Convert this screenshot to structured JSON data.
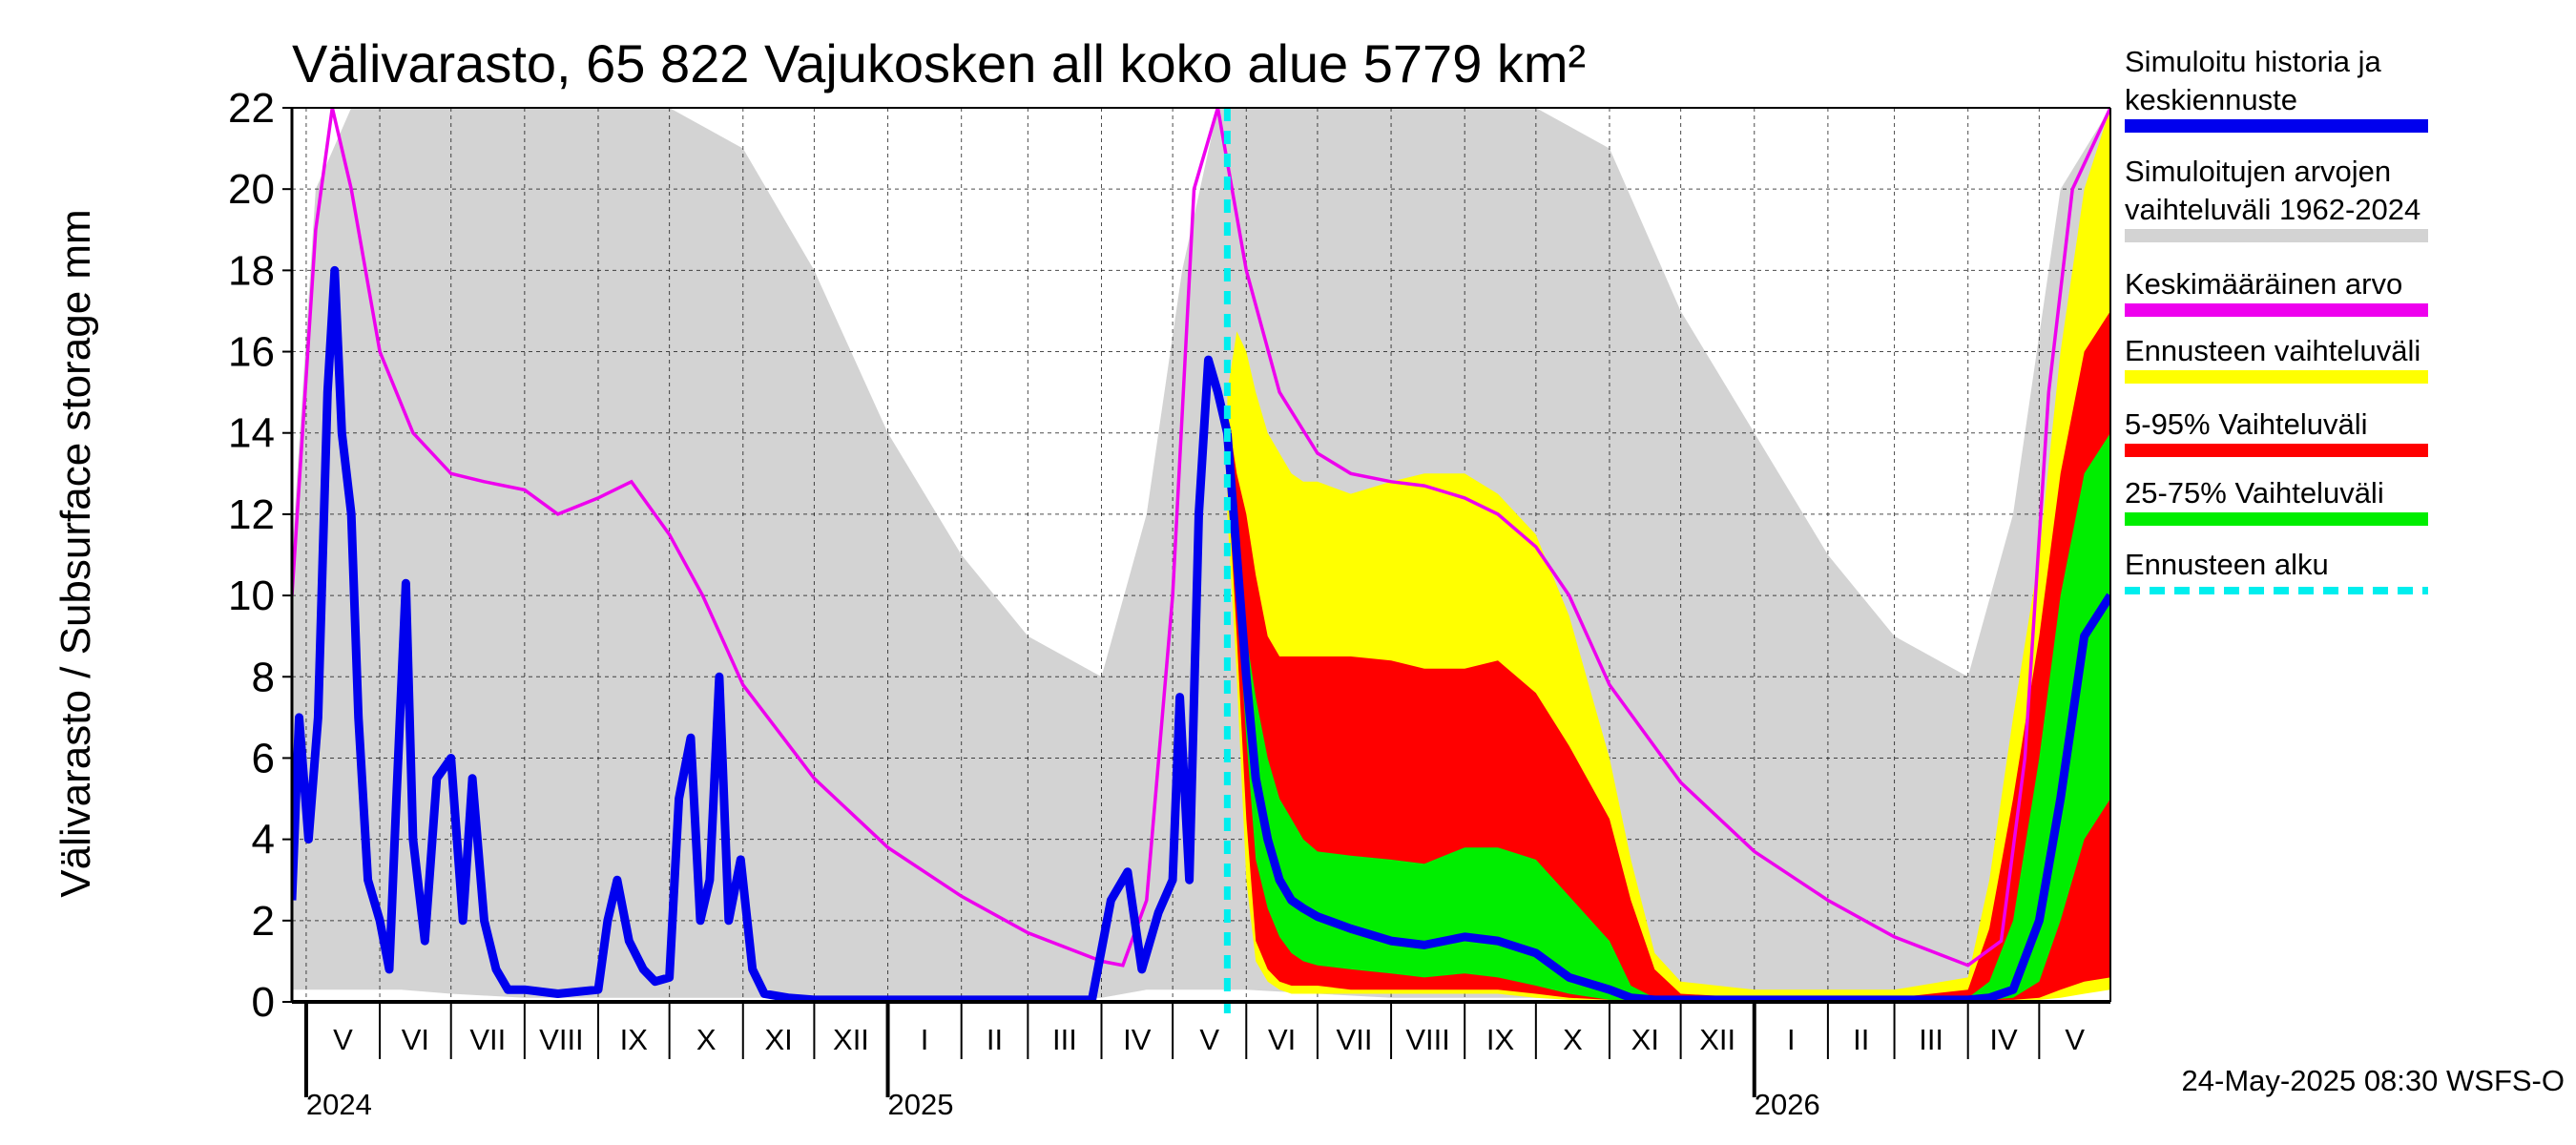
{
  "chart_data": {
    "type": "area",
    "title": "Välivarasto, 65 822 Vajukosken all koko alue 5779 km²",
    "ylabel": "Välivarasto / Subsurface storage  mm",
    "ylim": [
      0,
      22
    ],
    "yticks": [
      0,
      2,
      4,
      6,
      8,
      10,
      12,
      14,
      16,
      18,
      20,
      22
    ],
    "x_range": [
      "2024-04-25",
      "2026-05-31"
    ],
    "forecast_start": "2025-05-24",
    "grid": true,
    "legend_position": "right",
    "months": [
      {
        "label": "V",
        "start": "2024-05-01",
        "end": "2024-06-01"
      },
      {
        "label": "VI",
        "start": "2024-06-01",
        "end": "2024-07-01"
      },
      {
        "label": "VII",
        "start": "2024-07-01",
        "end": "2024-08-01"
      },
      {
        "label": "VIII",
        "start": "2024-08-01",
        "end": "2024-09-01"
      },
      {
        "label": "IX",
        "start": "2024-09-01",
        "end": "2024-10-01"
      },
      {
        "label": "X",
        "start": "2024-10-01",
        "end": "2024-11-01"
      },
      {
        "label": "XI",
        "start": "2024-11-01",
        "end": "2024-12-01"
      },
      {
        "label": "XII",
        "start": "2024-12-01",
        "end": "2025-01-01"
      },
      {
        "label": "I",
        "start": "2025-01-01",
        "end": "2025-02-01"
      },
      {
        "label": "II",
        "start": "2025-02-01",
        "end": "2025-03-01"
      },
      {
        "label": "III",
        "start": "2025-03-01",
        "end": "2025-04-01"
      },
      {
        "label": "IV",
        "start": "2025-04-01",
        "end": "2025-05-01"
      },
      {
        "label": "V",
        "start": "2025-05-01",
        "end": "2025-06-01"
      },
      {
        "label": "VI",
        "start": "2025-06-01",
        "end": "2025-07-01"
      },
      {
        "label": "VII",
        "start": "2025-07-01",
        "end": "2025-08-01"
      },
      {
        "label": "VIII",
        "start": "2025-08-01",
        "end": "2025-09-01"
      },
      {
        "label": "IX",
        "start": "2025-09-01",
        "end": "2025-10-01"
      },
      {
        "label": "X",
        "start": "2025-10-01",
        "end": "2025-11-01"
      },
      {
        "label": "XI",
        "start": "2025-11-01",
        "end": "2025-12-01"
      },
      {
        "label": "XII",
        "start": "2025-12-01",
        "end": "2026-01-01"
      },
      {
        "label": "I",
        "start": "2026-01-01",
        "end": "2026-02-01"
      },
      {
        "label": "II",
        "start": "2026-02-01",
        "end": "2026-03-01"
      },
      {
        "label": "III",
        "start": "2026-03-01",
        "end": "2026-04-01"
      },
      {
        "label": "IV",
        "start": "2026-04-01",
        "end": "2026-05-01"
      },
      {
        "label": "V",
        "start": "2026-05-01",
        "end": "2026-05-31"
      }
    ],
    "years": [
      {
        "label": "2024",
        "date": "2024-05-01"
      },
      {
        "label": "2025",
        "date": "2025-01-01"
      },
      {
        "label": "2026",
        "date": "2026-01-01"
      }
    ],
    "range_1962_2024": {
      "x": [
        "2024-04-25",
        "2024-05-05",
        "2024-05-20",
        "2024-06-10",
        "2024-07-01",
        "2024-08-01",
        "2024-09-01",
        "2024-10-01",
        "2024-11-01",
        "2024-12-01",
        "2025-01-01",
        "2025-02-01",
        "2025-03-01",
        "2025-04-01",
        "2025-04-20",
        "2025-05-05",
        "2025-05-20",
        "2025-06-01",
        "2025-07-01",
        "2025-08-01",
        "2025-09-01",
        "2025-10-01",
        "2025-11-01",
        "2025-12-01",
        "2026-01-01",
        "2026-02-01",
        "2026-03-01",
        "2026-04-01",
        "2026-04-20",
        "2026-05-10",
        "2026-05-31"
      ],
      "low": [
        0.3,
        0.3,
        0.3,
        0.3,
        0.2,
        0.1,
        0.1,
        0.1,
        0.1,
        0.1,
        0.05,
        0.05,
        0.05,
        0.1,
        0.3,
        0.3,
        0.3,
        0.3,
        0.2,
        0.1,
        0.1,
        0.1,
        0.1,
        0.05,
        0.05,
        0.05,
        0.05,
        0.1,
        0.3,
        0.3,
        0.3
      ],
      "high": [
        11,
        20,
        22,
        22,
        22,
        22,
        22,
        22,
        21,
        18,
        14,
        11,
        9,
        8,
        12,
        18,
        22,
        22,
        22,
        22,
        22,
        22,
        21,
        17,
        14,
        11,
        9,
        8,
        12,
        20,
        22
      ]
    },
    "mean": {
      "x": [
        "2024-04-25",
        "2024-05-05",
        "2024-05-12",
        "2024-05-20",
        "2024-06-01",
        "2024-06-15",
        "2024-07-01",
        "2024-07-15",
        "2024-08-01",
        "2024-08-15",
        "2024-09-01",
        "2024-09-15",
        "2024-10-01",
        "2024-10-15",
        "2024-11-01",
        "2024-12-01",
        "2025-01-01",
        "2025-02-01",
        "2025-03-01",
        "2025-04-01",
        "2025-04-10",
        "2025-04-20",
        "2025-05-01",
        "2025-05-10",
        "2025-05-20",
        "2025-06-01",
        "2025-06-15",
        "2025-07-01",
        "2025-07-15",
        "2025-08-01",
        "2025-08-15",
        "2025-09-01",
        "2025-09-15",
        "2025-10-01",
        "2025-10-15",
        "2025-11-01",
        "2025-12-01",
        "2026-01-01",
        "2026-02-01",
        "2026-03-01",
        "2026-04-01",
        "2026-04-15",
        "2026-04-25",
        "2026-05-05",
        "2026-05-15",
        "2026-05-31"
      ],
      "y": [
        10,
        19,
        22,
        20,
        16,
        14,
        13,
        12.8,
        12.6,
        12,
        12.4,
        12.8,
        11.5,
        10,
        7.8,
        5.5,
        3.8,
        2.6,
        1.7,
        1.0,
        0.9,
        2.5,
        10,
        20,
        22,
        18,
        15,
        13.5,
        13,
        12.8,
        12.7,
        12.4,
        12,
        11.2,
        10,
        7.8,
        5.4,
        3.7,
        2.5,
        1.6,
        0.9,
        1.5,
        6,
        15,
        20,
        22
      ]
    },
    "history": {
      "name": "Simuloitu historia ja keskiennuste",
      "x": [
        "2024-04-25",
        "2024-04-28",
        "2024-05-02",
        "2024-05-06",
        "2024-05-10",
        "2024-05-13",
        "2024-05-16",
        "2024-05-20",
        "2024-05-23",
        "2024-05-27",
        "2024-06-01",
        "2024-06-05",
        "2024-06-08",
        "2024-06-12",
        "2024-06-15",
        "2024-06-20",
        "2024-06-25",
        "2024-07-01",
        "2024-07-06",
        "2024-07-10",
        "2024-07-15",
        "2024-07-20",
        "2024-07-25",
        "2024-08-01",
        "2024-08-15",
        "2024-09-01",
        "2024-09-05",
        "2024-09-09",
        "2024-09-14",
        "2024-09-20",
        "2024-09-25",
        "2024-10-01",
        "2024-10-05",
        "2024-10-10",
        "2024-10-14",
        "2024-10-18",
        "2024-10-22",
        "2024-10-26",
        "2024-10-31",
        "2024-11-05",
        "2024-11-10",
        "2024-11-20",
        "2024-12-01",
        "2025-01-01",
        "2025-02-01",
        "2025-03-01",
        "2025-03-28",
        "2025-04-05",
        "2025-04-12",
        "2025-04-18",
        "2025-04-25",
        "2025-05-01",
        "2025-05-04",
        "2025-05-08",
        "2025-05-12",
        "2025-05-16",
        "2025-05-20",
        "2025-05-24"
      ],
      "y": [
        2.5,
        7,
        4,
        7,
        15,
        18,
        14,
        12,
        7,
        3,
        2,
        0.8,
        5,
        10.3,
        4,
        1.5,
        5.5,
        6,
        2,
        5.5,
        2,
        0.8,
        0.3,
        0.3,
        0.2,
        0.3,
        2,
        3,
        1.5,
        0.8,
        0.5,
        0.6,
        5,
        6.5,
        2,
        3,
        8,
        2,
        3.5,
        0.8,
        0.2,
        0.1,
        0.05,
        0.05,
        0.05,
        0.05,
        0.05,
        2.5,
        3.2,
        0.8,
        2.2,
        3,
        7.5,
        3,
        12,
        15.8,
        15,
        14
      ]
    },
    "forecast": {
      "x": [
        "2025-05-24",
        "2025-05-28",
        "2025-06-01",
        "2025-06-05",
        "2025-06-10",
        "2025-06-15",
        "2025-06-20",
        "2025-06-25",
        "2025-07-01",
        "2025-07-15",
        "2025-08-01",
        "2025-08-15",
        "2025-09-01",
        "2025-09-15",
        "2025-10-01",
        "2025-10-15",
        "2025-11-01",
        "2025-11-10",
        "2025-11-20",
        "2025-12-01",
        "2026-01-01",
        "2026-02-01",
        "2026-03-01",
        "2026-04-01",
        "2026-04-10",
        "2026-04-20",
        "2026-05-01",
        "2026-05-10",
        "2026-05-20",
        "2026-05-31"
      ],
      "median": [
        14,
        11,
        8,
        5.5,
        4,
        3,
        2.5,
        2.3,
        2.1,
        1.8,
        1.5,
        1.4,
        1.6,
        1.5,
        1.2,
        0.6,
        0.3,
        0.1,
        0.05,
        0.05,
        0.05,
        0.05,
        0.05,
        0.05,
        0.1,
        0.3,
        2,
        5,
        9,
        10
      ],
      "p25": [
        13.5,
        10,
        6.5,
        3.5,
        2.3,
        1.6,
        1.2,
        1,
        0.9,
        0.8,
        0.7,
        0.6,
        0.7,
        0.6,
        0.4,
        0.2,
        0.05,
        0.05,
        0.05,
        0.05,
        0.05,
        0.05,
        0.05,
        0.05,
        0.05,
        0.1,
        0.5,
        2,
        4,
        5
      ],
      "p75": [
        14.2,
        11.5,
        9,
        7.5,
        6,
        5,
        4.5,
        4,
        3.7,
        3.6,
        3.5,
        3.4,
        3.8,
        3.8,
        3.5,
        2.6,
        1.5,
        0.4,
        0.1,
        0.05,
        0.05,
        0.05,
        0.05,
        0.1,
        0.5,
        2,
        6,
        10,
        13,
        14
      ],
      "p05": [
        13,
        9,
        4.5,
        1.5,
        0.8,
        0.5,
        0.4,
        0.4,
        0.4,
        0.3,
        0.3,
        0.3,
        0.3,
        0.3,
        0.2,
        0.1,
        0.05,
        0.05,
        0.05,
        0.05,
        0.05,
        0.05,
        0.05,
        0.05,
        0.05,
        0.05,
        0.1,
        0.3,
        0.5,
        0.6
      ],
      "p95": [
        14.5,
        13,
        12,
        10.5,
        9,
        8.5,
        8.5,
        8.5,
        8.5,
        8.5,
        8.4,
        8.2,
        8.2,
        8.4,
        7.6,
        6.3,
        4.5,
        2.5,
        0.8,
        0.2,
        0.1,
        0.1,
        0.1,
        0.3,
        1.8,
        5,
        9,
        13,
        16,
        17
      ],
      "min": [
        12,
        8,
        3,
        1,
        0.5,
        0.3,
        0.2,
        0.2,
        0.2,
        0.2,
        0.2,
        0.2,
        0.2,
        0.2,
        0.1,
        0.05,
        0.05,
        0.05,
        0.05,
        0.05,
        0.05,
        0.05,
        0.05,
        0.05,
        0.05,
        0.05,
        0.05,
        0.1,
        0.2,
        0.3
      ],
      "max": [
        15,
        16.5,
        16,
        15,
        14,
        13.5,
        13,
        12.8,
        12.8,
        12.5,
        12.8,
        13,
        13,
        12.5,
        11.5,
        9.5,
        6,
        3.5,
        1.2,
        0.5,
        0.3,
        0.3,
        0.3,
        0.6,
        3,
        7,
        11,
        16,
        20,
        22
      ]
    },
    "legend": [
      {
        "key": "history",
        "lines": [
          "Simuloitu historia ja",
          "keskiennuste"
        ],
        "color": "#0000ee"
      },
      {
        "key": "range",
        "lines": [
          "Simuloitujen arvojen",
          "vaihteluväli 1962-2024"
        ],
        "color": "#d3d3d3"
      },
      {
        "key": "mean",
        "lines": [
          "Keskimääräinen arvo"
        ],
        "color": "#ee00ee"
      },
      {
        "key": "fc_range",
        "lines": [
          "Ennusteen vaihteluväli"
        ],
        "color": "#ffff00"
      },
      {
        "key": "p5_95",
        "lines": [
          "5-95% Vaihteluväli"
        ],
        "color": "#ff0000"
      },
      {
        "key": "p25_75",
        "lines": [
          "25-75% Vaihteluväli"
        ],
        "color": "#00ee00"
      },
      {
        "key": "fc_start",
        "lines": [
          "Ennusteen alku"
        ],
        "color": "#00eeee"
      }
    ],
    "footer": "24-May-2025 08:30 WSFS-O"
  }
}
